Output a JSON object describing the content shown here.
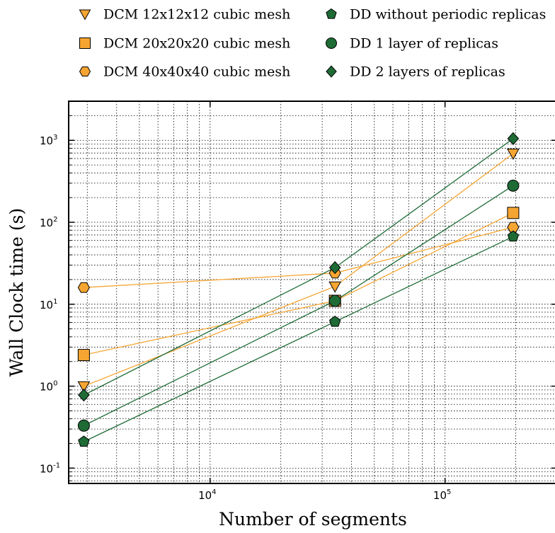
{
  "chart_data": {
    "type": "line",
    "xscale": "log",
    "yscale": "log",
    "xlim": [
      2500,
      300000
    ],
    "ylim": [
      0.065,
      3000
    ],
    "grid": true,
    "legend_position": "top",
    "xlabel": "Number of segments",
    "ylabel": "Wall Clock time (s)",
    "x_ticks": [
      {
        "value": 10000,
        "base": "10",
        "exp": "4"
      },
      {
        "value": 100000,
        "base": "10",
        "exp": "5"
      }
    ],
    "y_ticks": [
      {
        "value": 0.1,
        "base": "10",
        "exp": "-1"
      },
      {
        "value": 1,
        "base": "10",
        "exp": "0"
      },
      {
        "value": 10,
        "base": "10",
        "exp": "1"
      },
      {
        "value": 100,
        "base": "10",
        "exp": "2"
      },
      {
        "value": 1000,
        "base": "10",
        "exp": "3"
      }
    ],
    "series": [
      {
        "name": "DCM 12x12x12 cubic mesh",
        "marker": "triangle-down",
        "color": "#f7a532",
        "x": [
          2900,
          34000,
          195000
        ],
        "y": [
          1.0,
          16.5,
          690
        ]
      },
      {
        "name": "DCM 20x20x20 cubic mesh",
        "marker": "square",
        "color": "#f7a532",
        "x": [
          2900,
          34000,
          195000
        ],
        "y": [
          2.4,
          11,
          130
        ]
      },
      {
        "name": "DCM 40x40x40 cubic mesh",
        "marker": "hexagon",
        "color": "#f7a532",
        "x": [
          2900,
          34000,
          195000
        ],
        "y": [
          16,
          24,
          87
        ]
      },
      {
        "name": "DD without periodic replicas",
        "marker": "pentagon",
        "color": "#1e6b35",
        "x": [
          2900,
          34000,
          195000
        ],
        "y": [
          0.21,
          6.1,
          67
        ]
      },
      {
        "name": "DD 1 layer of replicas",
        "marker": "circle",
        "color": "#1e6b35",
        "x": [
          2900,
          34000,
          195000
        ],
        "y": [
          0.33,
          11,
          280
        ]
      },
      {
        "name": "DD 2 layers of replicas",
        "marker": "diamond",
        "color": "#1e6b35",
        "x": [
          2900,
          34000,
          195000
        ],
        "y": [
          0.78,
          28,
          1050
        ]
      }
    ]
  }
}
